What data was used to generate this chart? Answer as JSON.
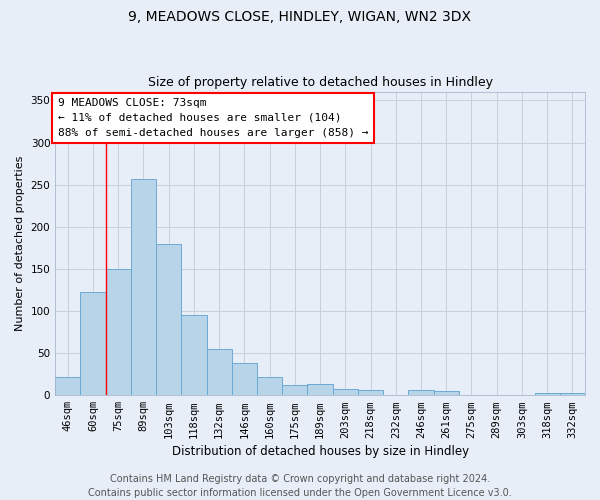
{
  "title": "9, MEADOWS CLOSE, HINDLEY, WIGAN, WN2 3DX",
  "subtitle": "Size of property relative to detached houses in Hindley",
  "xlabel": "Distribution of detached houses by size in Hindley",
  "ylabel": "Number of detached properties",
  "categories": [
    "46sqm",
    "60sqm",
    "75sqm",
    "89sqm",
    "103sqm",
    "118sqm",
    "132sqm",
    "146sqm",
    "160sqm",
    "175sqm",
    "189sqm",
    "203sqm",
    "218sqm",
    "232sqm",
    "246sqm",
    "261sqm",
    "275sqm",
    "289sqm",
    "303sqm",
    "318sqm",
    "332sqm"
  ],
  "values": [
    22,
    122,
    150,
    257,
    180,
    95,
    55,
    38,
    22,
    12,
    13,
    7,
    6,
    0,
    6,
    5,
    0,
    0,
    0,
    3,
    3
  ],
  "bar_color": "#b8d4e8",
  "bar_edge_color": "#6aaad4",
  "background_color": "#e8eef8",
  "plot_bg_color": "#e8eef8",
  "grid_color": "#c8d0e0",
  "annotation_box_text": "9 MEADOWS CLOSE: 73sqm\n← 11% of detached houses are smaller (104)\n88% of semi-detached houses are larger (858) →",
  "red_line_x": 1.5,
  "annotation_box_color": "white",
  "annotation_box_edgecolor": "red",
  "red_line_color": "red",
  "ylim": [
    0,
    360
  ],
  "yticks": [
    0,
    50,
    100,
    150,
    200,
    250,
    300,
    350
  ],
  "footer_line1": "Contains HM Land Registry data © Crown copyright and database right 2024.",
  "footer_line2": "Contains public sector information licensed under the Open Government Licence v3.0.",
  "title_fontsize": 10,
  "subtitle_fontsize": 9,
  "annotation_fontsize": 8,
  "footer_fontsize": 7,
  "ylabel_fontsize": 8,
  "xlabel_fontsize": 8.5,
  "tick_fontsize": 7.5
}
